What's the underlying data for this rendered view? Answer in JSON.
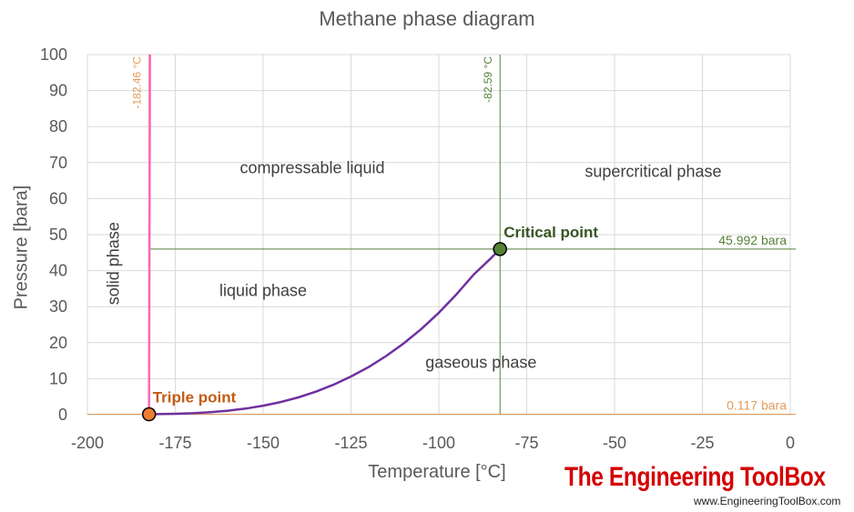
{
  "chart_data": {
    "type": "line",
    "title": "Methane phase diagram",
    "xlabel": "Temperature [°C]",
    "ylabel": "Pressure [bara]",
    "xlim": [
      -200,
      0
    ],
    "ylim": [
      0,
      100
    ],
    "x_ticks": [
      -200,
      -175,
      -150,
      -125,
      -100,
      -75,
      -50,
      -25,
      0
    ],
    "y_ticks": [
      0,
      10,
      20,
      30,
      40,
      50,
      60,
      70,
      80,
      90,
      100
    ],
    "grid": true,
    "series": [
      {
        "color": "#7030a0",
        "x": [
          -182.46,
          -175,
          -170,
          -165,
          -160,
          -155,
          -150,
          -145,
          -140,
          -135,
          -130,
          -125,
          -120,
          -115,
          -110,
          -105,
          -100,
          -95,
          -90,
          -85,
          -82.59
        ],
        "y": [
          0.117,
          0.25,
          0.4,
          0.7,
          1.1,
          1.7,
          2.5,
          3.5,
          4.8,
          6.4,
          8.3,
          10.6,
          13.2,
          16.3,
          19.8,
          23.8,
          28.3,
          33.4,
          39.0,
          43.6,
          45.992
        ]
      },
      {
        "color": "#ff66b3",
        "x": [
          -182.46,
          -182.2
        ],
        "y": [
          0.117,
          100
        ]
      }
    ],
    "reference_lines": [
      {
        "orientation": "vertical",
        "x": -182.46,
        "label": "-182.46 °C",
        "color": "#e49b5a"
      },
      {
        "orientation": "vertical",
        "x": -82.59,
        "label": "-82.59 °C",
        "color": "#548235"
      },
      {
        "orientation": "horizontal",
        "y": 45.992,
        "label": "45.992 bara",
        "color": "#548235"
      },
      {
        "orientation": "horizontal",
        "y": 0.117,
        "label": "0.117 bara",
        "color": "#e49b5a"
      }
    ],
    "points": [
      {
        "label": "Triple point",
        "x": -182.46,
        "y": 0.117,
        "color": "#ed7d31",
        "label_color": "#c55a11"
      },
      {
        "label": "Critical point",
        "x": -82.59,
        "y": 45.992,
        "color": "#548235",
        "label_color": "#375623"
      }
    ],
    "annotations": [
      {
        "text": "compressable liquid",
        "x": -136,
        "y": 67
      },
      {
        "text": "supercritical phase",
        "x": -39,
        "y": 66
      },
      {
        "text": "liquid phase",
        "x": -150,
        "y": 33
      },
      {
        "text": "gaseous phase",
        "x": -88,
        "y": 13
      },
      {
        "text": "solid phase",
        "x": -191,
        "y": 42,
        "rotate": true
      }
    ]
  },
  "branding": {
    "logo": "The Engineering ToolBox",
    "url": "www.EngineeringToolBox.com"
  }
}
